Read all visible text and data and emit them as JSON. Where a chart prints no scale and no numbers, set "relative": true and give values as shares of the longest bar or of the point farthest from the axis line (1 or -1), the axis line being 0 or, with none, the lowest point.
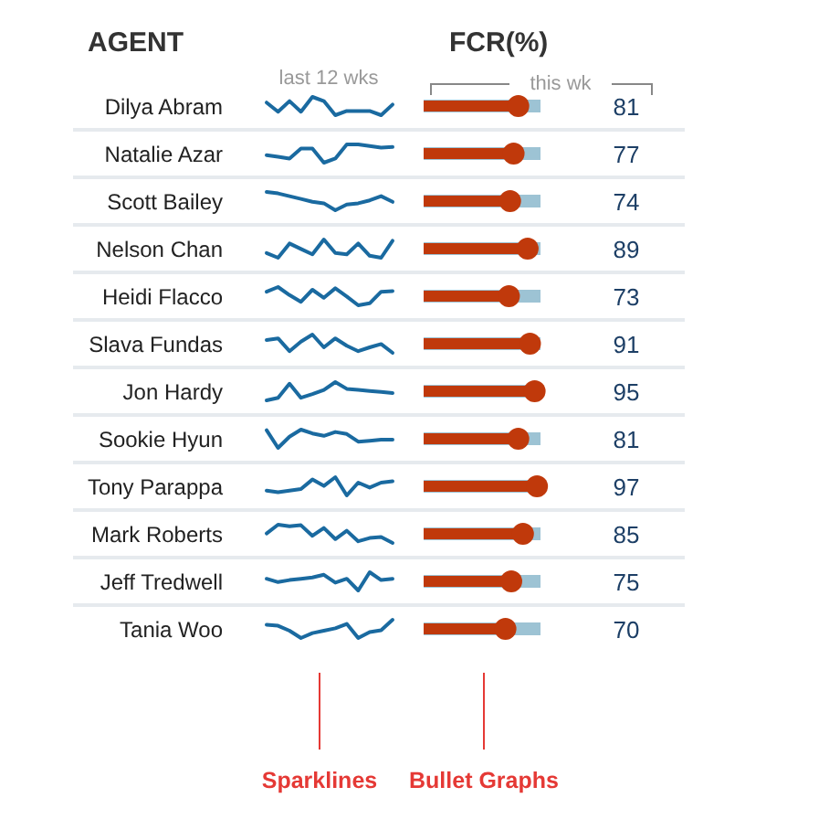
{
  "chart_data": [
    {
      "type": "lollipop",
      "orientation": "horizontal",
      "title": "FCR(%)",
      "subtitle": "this wk",
      "ylabel": "AGENT",
      "categories": [
        "Dilya Abram",
        "Natalie Azar",
        "Scott Bailey",
        "Nelson Chan",
        "Heidi Flacco",
        "Slava Fundas",
        "Jon Hardy",
        "Sookie Hyun",
        "Tony Parappa",
        "Mark Roberts",
        "Jeff Tredwell",
        "Tania Woo"
      ],
      "grid": "y",
      "xlim": [
        0,
        100
      ],
      "values": [
        81,
        77,
        74,
        89,
        73,
        91,
        95,
        81,
        97,
        85,
        75,
        70
      ],
      "color": "#c0390b",
      "data_labels": true,
      "annotations": [
        "Sparklines",
        "Bullet Graphs"
      ]
    },
    {
      "type": "line",
      "relative": true,
      "title": "last 12 wks",
      "color": "#1a6aa0",
      "categories": [
        null,
        null,
        null,
        null,
        null,
        null,
        null,
        null,
        null,
        null,
        null,
        null
      ],
      "values": [
        0.69,
        0.19,
        0.77,
        0.19,
        1,
        0.77,
        0,
        0.23,
        0.23,
        0.23,
        0,
        0.58
      ]
    },
    {
      "type": "line",
      "relative": true,
      "color": "#1a6aa0",
      "categories": [
        null,
        null,
        null,
        null,
        null,
        null,
        null,
        null,
        null,
        null,
        null,
        null
      ],
      "values": [
        0.41,
        0.32,
        0.23,
        0.77,
        0.77,
        0,
        0.23,
        1,
        1,
        0.91,
        0.82,
        0.86
      ]
    },
    {
      "type": "line",
      "relative": true,
      "color": "#1a6aa0",
      "categories": [
        null,
        null,
        null,
        null,
        null,
        null,
        null,
        null,
        null,
        null,
        null,
        null
      ],
      "values": [
        1,
        0.92,
        0.77,
        0.62,
        0.46,
        0.38,
        0,
        0.31,
        0.38,
        0.54,
        0.77,
        0.46
      ]
    },
    {
      "type": "line",
      "relative": true,
      "color": "#1a6aa0",
      "categories": [
        null,
        null,
        null,
        null,
        null,
        null,
        null,
        null,
        null,
        null,
        null,
        null
      ],
      "values": [
        0.26,
        0,
        0.78,
        0.48,
        0.19,
        1,
        0.26,
        0.19,
        0.78,
        0.11,
        0,
        0.93
      ]
    },
    {
      "type": "line",
      "relative": true,
      "color": "#1a6aa0",
      "categories": [
        null,
        null,
        null,
        null,
        null,
        null,
        null,
        null,
        null,
        null,
        null,
        null
      ],
      "values": [
        0.74,
        1,
        0.56,
        0.19,
        0.85,
        0.41,
        0.93,
        0.48,
        0,
        0.11,
        0.74,
        0.78
      ]
    },
    {
      "type": "line",
      "relative": true,
      "color": "#1a6aa0",
      "categories": [
        null,
        null,
        null,
        null,
        null,
        null,
        null,
        null,
        null,
        null,
        null,
        null
      ],
      "values": [
        0.7,
        0.79,
        0.09,
        0.61,
        1,
        0.3,
        0.79,
        0.39,
        0.09,
        0.3,
        0.48,
        0
      ]
    },
    {
      "type": "line",
      "relative": true,
      "color": "#1a6aa0",
      "categories": [
        null,
        null,
        null,
        null,
        null,
        null,
        null,
        null,
        null,
        null,
        null,
        null
      ],
      "values": [
        0,
        0.14,
        0.91,
        0.14,
        0.34,
        0.57,
        1,
        0.63,
        0.57,
        0.51,
        0.46,
        0.4
      ]
    },
    {
      "type": "line",
      "relative": true,
      "color": "#1a6aa0",
      "categories": [
        null,
        null,
        null,
        null,
        null,
        null,
        null,
        null,
        null,
        null,
        null,
        null
      ],
      "values": [
        0.97,
        0,
        0.61,
        1,
        0.79,
        0.66,
        0.87,
        0.76,
        0.34,
        0.39,
        0.45,
        0.45
      ]
    },
    {
      "type": "line",
      "relative": true,
      "color": "#1a6aa0",
      "categories": [
        null,
        null,
        null,
        null,
        null,
        null,
        null,
        null,
        null,
        null,
        null,
        null
      ],
      "values": [
        0.26,
        0.17,
        0.26,
        0.35,
        0.87,
        0.52,
        1,
        0,
        0.7,
        0.43,
        0.7,
        0.78
      ]
    },
    {
      "type": "line",
      "relative": true,
      "color": "#1a6aa0",
      "categories": [
        null,
        null,
        null,
        null,
        null,
        null,
        null,
        null,
        null,
        null,
        null,
        null
      ],
      "values": [
        0.52,
        1,
        0.91,
        0.97,
        0.39,
        0.82,
        0.21,
        0.67,
        0.09,
        0.27,
        0.33,
        0
      ]
    },
    {
      "type": "line",
      "relative": true,
      "color": "#1a6aa0",
      "categories": [
        null,
        null,
        null,
        null,
        null,
        null,
        null,
        null,
        null,
        null,
        null,
        null
      ],
      "values": [
        0.64,
        0.46,
        0.57,
        0.64,
        0.71,
        0.86,
        0.43,
        0.64,
        0,
        1,
        0.57,
        0.64
      ]
    },
    {
      "type": "line",
      "relative": true,
      "color": "#1a6aa0",
      "categories": [
        null,
        null,
        null,
        null,
        null,
        null,
        null,
        null,
        null,
        null,
        null,
        null
      ],
      "values": [
        0.73,
        0.67,
        0.4,
        0,
        0.27,
        0.4,
        0.53,
        0.77,
        0,
        0.33,
        0.43,
        1
      ]
    }
  ]
}
